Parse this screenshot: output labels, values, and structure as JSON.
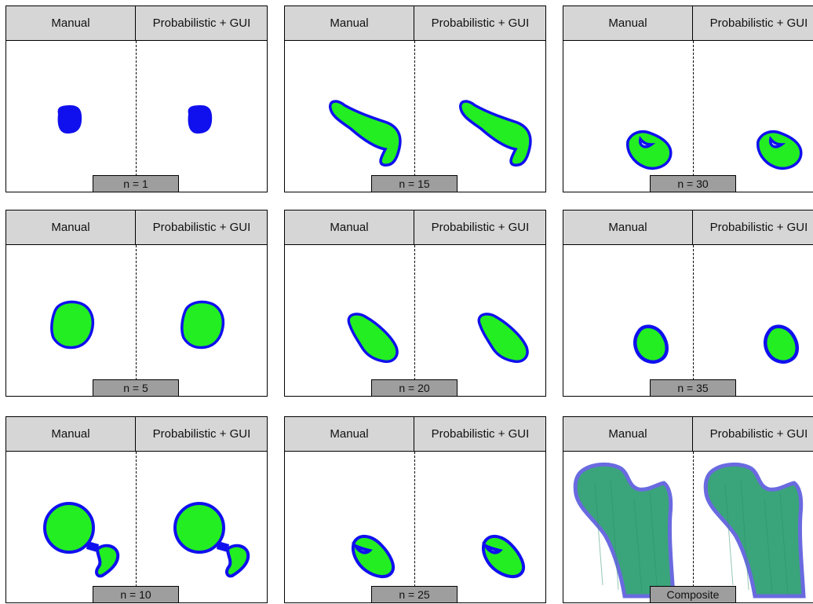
{
  "header": {
    "left_label": "Manual",
    "right_label": "Probabilistic + GUI"
  },
  "colors": {
    "fill": "#22ee22",
    "outline": "#1010ee",
    "composite_fill": "#3aa57a",
    "composite_outline": "#6a6ae0"
  },
  "panels": [
    {
      "id": "n1",
      "label": "n = 1",
      "shape": "blob-small"
    },
    {
      "id": "n15",
      "label": "n = 15",
      "shape": "elongated"
    },
    {
      "id": "n30",
      "label": "n = 30",
      "shape": "notched"
    },
    {
      "id": "n5",
      "label": "n = 5",
      "shape": "roundish"
    },
    {
      "id": "n20",
      "label": "n = 20",
      "shape": "teardrop"
    },
    {
      "id": "n35",
      "label": "n = 35",
      "shape": "small-round"
    },
    {
      "id": "n10",
      "label": "n = 10",
      "shape": "ball-with-tail"
    },
    {
      "id": "n25",
      "label": "n = 25",
      "shape": "wedge"
    },
    {
      "id": "composite",
      "label": "Composite",
      "shape": "femur-3d"
    }
  ]
}
